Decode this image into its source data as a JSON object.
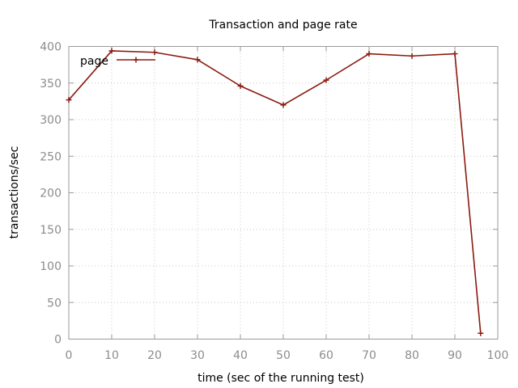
{
  "chart_data": {
    "type": "line",
    "title": "Transaction and page rate",
    "xlabel": "time (sec of the running test)",
    "ylabel": "transactions/sec",
    "xlim": [
      0,
      100
    ],
    "ylim": [
      0,
      400
    ],
    "x_ticks": [
      "0",
      "10",
      "20",
      "30",
      "40",
      "50",
      "60",
      "70",
      "80",
      "90",
      "100"
    ],
    "y_ticks": [
      "0",
      "50",
      "100",
      "150",
      "200",
      "250",
      "300",
      "350",
      "400"
    ],
    "grid": true,
    "legend_position": "top-left",
    "series": [
      {
        "name": "page",
        "color": "#8b1a0f",
        "marker": "plus",
        "x": [
          0,
          10,
          20,
          30,
          40,
          50,
          60,
          70,
          80,
          90,
          96
        ],
        "y": [
          327,
          394,
          392,
          382,
          346,
          320,
          354,
          390,
          387,
          390,
          8
        ]
      }
    ]
  }
}
